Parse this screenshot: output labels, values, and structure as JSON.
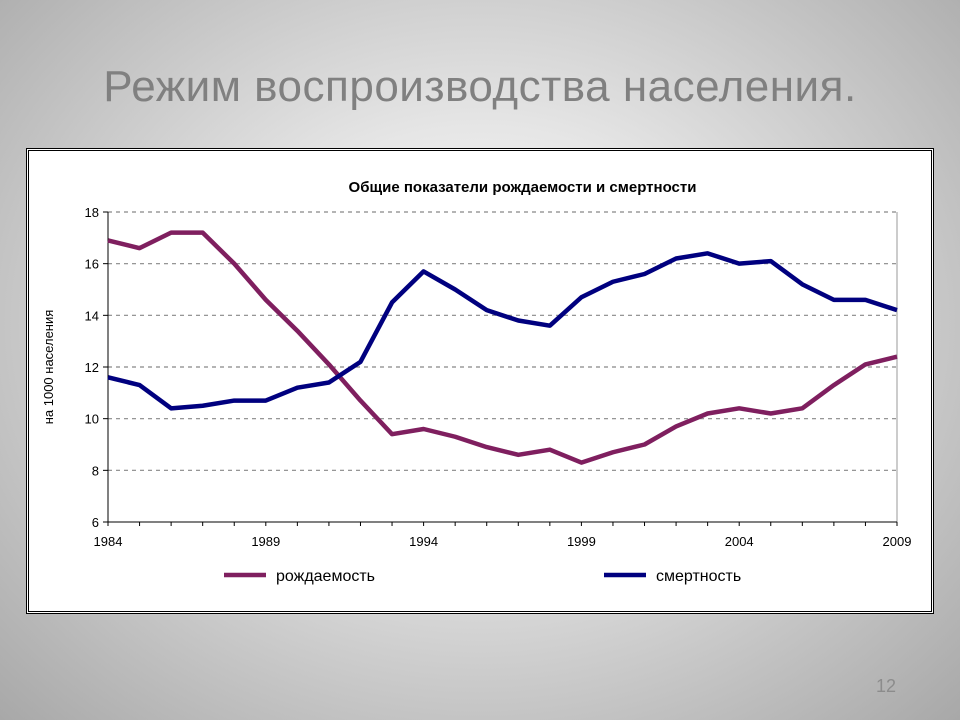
{
  "slide": {
    "title": "Режим воспроизводства населения.",
    "page_number": "12"
  },
  "chart_data": {
    "type": "line",
    "title": "Общие показатели рождаемости и смертности",
    "ylabel": "на 1000 населения",
    "xlabel": "",
    "x": [
      1984,
      1985,
      1986,
      1987,
      1988,
      1989,
      1990,
      1991,
      1992,
      1993,
      1994,
      1995,
      1996,
      1997,
      1998,
      1999,
      2000,
      2001,
      2002,
      2003,
      2004,
      2005,
      2006,
      2007,
      2008,
      2009
    ],
    "xticks": [
      "1984",
      "1989",
      "1994",
      "1999",
      "2004",
      "2009"
    ],
    "yticks": [
      "6",
      "8",
      "10",
      "12",
      "14",
      "16",
      "18"
    ],
    "ylim": [
      6,
      18
    ],
    "xlim": [
      1984,
      2009
    ],
    "grid": "horizontal dashed",
    "legend_position": "bottom",
    "series": [
      {
        "name": "рождаемость",
        "color": "#7f1f5f",
        "values": [
          16.9,
          16.6,
          17.2,
          17.2,
          16.0,
          14.6,
          13.4,
          12.1,
          10.7,
          9.4,
          9.6,
          9.3,
          8.9,
          8.6,
          8.8,
          8.3,
          8.7,
          9.0,
          9.7,
          10.2,
          10.4,
          10.2,
          10.4,
          11.3,
          12.1,
          12.4
        ]
      },
      {
        "name": "смертность",
        "color": "#00007f",
        "values": [
          11.6,
          11.3,
          10.4,
          10.5,
          10.7,
          10.7,
          11.2,
          11.4,
          12.2,
          14.5,
          15.7,
          15.0,
          14.2,
          13.8,
          13.6,
          14.7,
          15.3,
          15.6,
          16.2,
          16.4,
          16.0,
          16.1,
          15.2,
          14.6,
          14.6,
          14.2
        ]
      }
    ]
  }
}
